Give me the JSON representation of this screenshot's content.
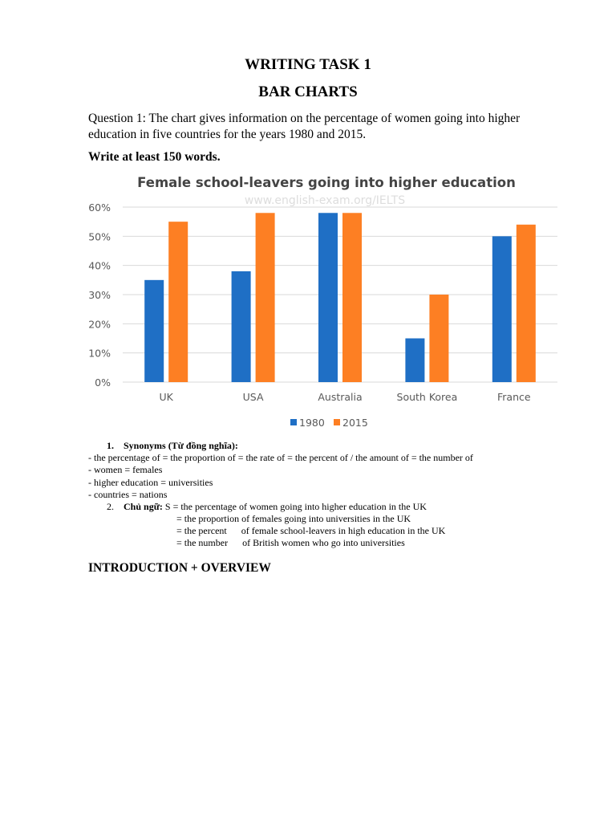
{
  "doc": {
    "title": "WRITING TASK 1",
    "subtitle": "BAR CHARTS",
    "question": "Question 1: The chart gives information on the percentage of women going into higher education in five countries for the years 1980 and 2015.",
    "instruction": "Write at least 150 words.",
    "synonyms_num": "1.",
    "synonyms_heading": "Synonyms (Từ đồng nghĩa):",
    "synonyms": [
      "- the percentage of = the proportion of = the rate of = the percent of / the amount of = the number of",
      "- women = females",
      "- higher education = universities",
      "- countries = nations"
    ],
    "subject_num": "2.",
    "subject_heading": "Chủ ngữ:",
    "subject_lines": [
      "S = the percentage of women going into higher education in the UK",
      "= the proportion of females going into universities in the UK",
      "= the percent      of female school-leavers in high education in the UK",
      "= the number      of British women who go into universities"
    ],
    "section_heading": "INTRODUCTION + OVERVIEW"
  },
  "chart_data": {
    "type": "bar",
    "title": "Female school-leavers going into higher education",
    "watermark": "www.english-exam.org/IELTS",
    "categories": [
      "UK",
      "USA",
      "Australia",
      "South Korea",
      "France"
    ],
    "series": [
      {
        "name": "1980",
        "color": "#1f6fc5",
        "values": [
          35,
          38,
          58,
          15,
          50
        ]
      },
      {
        "name": "2015",
        "color": "#fd7f23",
        "values": [
          55,
          58,
          58,
          30,
          54
        ]
      }
    ],
    "yticks": [
      "0%",
      "10%",
      "20%",
      "30%",
      "40%",
      "50%",
      "60%"
    ],
    "ylim": [
      0,
      60
    ],
    "grid": true,
    "legend": "bottom"
  }
}
